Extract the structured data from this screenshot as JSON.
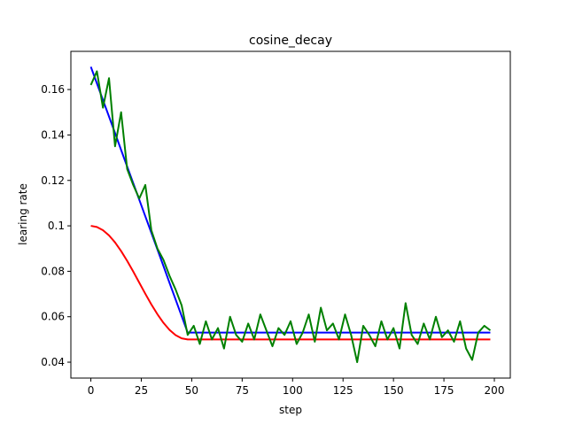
{
  "chart_data": {
    "type": "line",
    "title": "cosine_decay",
    "x_label": "step",
    "y_label": "learing rate",
    "x": [
      0,
      3,
      6,
      9,
      12,
      15,
      18,
      21,
      24,
      27,
      30,
      33,
      36,
      39,
      42,
      45,
      48,
      51,
      54,
      57,
      60,
      63,
      66,
      69,
      72,
      75,
      78,
      81,
      84,
      87,
      90,
      93,
      96,
      99,
      102,
      105,
      108,
      111,
      114,
      117,
      120,
      123,
      126,
      129,
      132,
      135,
      138,
      141,
      144,
      147,
      150,
      153,
      156,
      159,
      162,
      165,
      168,
      171,
      174,
      177,
      180,
      183,
      186,
      189,
      192,
      195,
      198
    ],
    "series": [
      {
        "color": "#ff0000",
        "values": [
          0.1,
          0.0995,
          0.0981,
          0.0958,
          0.0927,
          0.0889,
          0.0846,
          0.0799,
          0.075,
          0.0701,
          0.0654,
          0.0611,
          0.0573,
          0.0542,
          0.0519,
          0.0505,
          0.05,
          0.05,
          0.05,
          0.05,
          0.05,
          0.05,
          0.05,
          0.05,
          0.05,
          0.05,
          0.05,
          0.05,
          0.05,
          0.05,
          0.05,
          0.05,
          0.05,
          0.05,
          0.05,
          0.05,
          0.05,
          0.05,
          0.05,
          0.05,
          0.05,
          0.05,
          0.05,
          0.05,
          0.05,
          0.05,
          0.05,
          0.05,
          0.05,
          0.05,
          0.05,
          0.05,
          0.05,
          0.05,
          0.05,
          0.05,
          0.05,
          0.05,
          0.05,
          0.05,
          0.05,
          0.05,
          0.05,
          0.05,
          0.05,
          0.05,
          0.05
        ]
      },
      {
        "color": "#0000ff",
        "values": [
          0.17,
          0.1627,
          0.1554,
          0.1481,
          0.1408,
          0.1334,
          0.1261,
          0.1188,
          0.1115,
          0.1042,
          0.0969,
          0.0896,
          0.0823,
          0.0749,
          0.0676,
          0.0603,
          0.053,
          0.053,
          0.053,
          0.053,
          0.053,
          0.053,
          0.053,
          0.053,
          0.053,
          0.053,
          0.053,
          0.053,
          0.053,
          0.053,
          0.053,
          0.053,
          0.053,
          0.053,
          0.053,
          0.053,
          0.053,
          0.053,
          0.053,
          0.053,
          0.053,
          0.053,
          0.053,
          0.053,
          0.053,
          0.053,
          0.053,
          0.053,
          0.053,
          0.053,
          0.053,
          0.053,
          0.053,
          0.053,
          0.053,
          0.053,
          0.053,
          0.053,
          0.053,
          0.053,
          0.053,
          0.053,
          0.053,
          0.053,
          0.053,
          0.053,
          0.053
        ]
      },
      {
        "color": "#008000",
        "values": [
          0.162,
          0.168,
          0.152,
          0.165,
          0.135,
          0.15,
          0.125,
          0.118,
          0.112,
          0.118,
          0.098,
          0.09,
          0.085,
          0.078,
          0.072,
          0.065,
          0.052,
          0.056,
          0.048,
          0.058,
          0.05,
          0.055,
          0.046,
          0.06,
          0.052,
          0.049,
          0.057,
          0.05,
          0.061,
          0.054,
          0.047,
          0.055,
          0.052,
          0.058,
          0.048,
          0.053,
          0.061,
          0.049,
          0.064,
          0.054,
          0.057,
          0.05,
          0.061,
          0.052,
          0.04,
          0.056,
          0.052,
          0.047,
          0.058,
          0.05,
          0.055,
          0.046,
          0.066,
          0.052,
          0.048,
          0.057,
          0.05,
          0.06,
          0.051,
          0.054,
          0.049,
          0.058,
          0.046,
          0.041,
          0.053,
          0.056,
          0.054
        ]
      }
    ],
    "xlim": [
      -9.9,
      207.9
    ],
    "ylim": [
      0.033,
      0.1768
    ],
    "xticks": [
      0,
      25,
      50,
      75,
      100,
      125,
      150,
      175,
      200
    ],
    "yticks": [
      0.04,
      0.06,
      0.08,
      0.1,
      0.12,
      0.14,
      0.16
    ]
  }
}
